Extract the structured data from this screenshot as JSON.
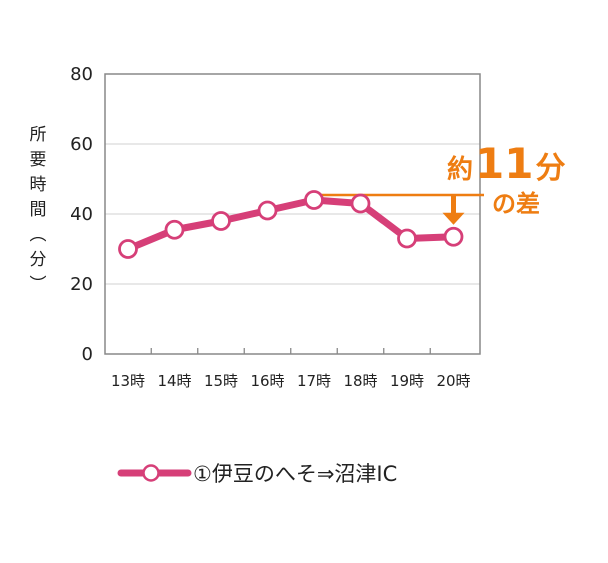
{
  "chart_data": {
    "type": "line",
    "categories": [
      "13時",
      "14時",
      "15時",
      "16時",
      "17時",
      "18時",
      "19時",
      "20時"
    ],
    "series": [
      {
        "name": "①伊豆のへそ⇒沼津IC",
        "values": [
          30,
          35.5,
          38,
          41,
          44,
          43,
          33,
          33.5
        ]
      }
    ],
    "ylabel": "所要時間（分）",
    "yticks": [
      0,
      20,
      40,
      60,
      80
    ],
    "ylim": [
      0,
      80
    ],
    "grid": true,
    "legend": "bottom",
    "annotation": {
      "prefix": "約",
      "number": "11",
      "unit": "分",
      "suffix": "の差",
      "max_value": 44,
      "min_value": 33.5
    }
  },
  "colors": {
    "series": "#d63f78",
    "annotation": "#ee7d12",
    "grid": "#d9d9d9",
    "axis": "#888888"
  }
}
